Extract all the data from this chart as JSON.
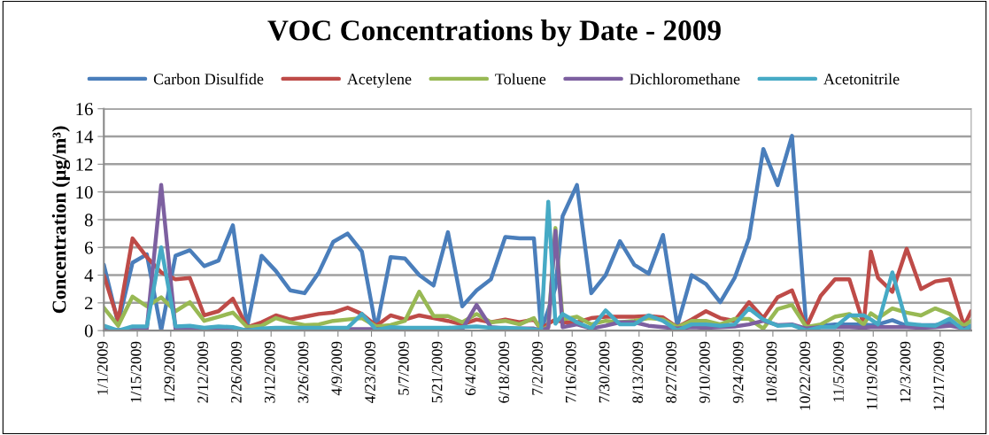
{
  "chart_data": {
    "type": "line",
    "title": "VOC Concentrations by Date - 2009",
    "ylabel": "Concentration (µg/m³)",
    "x": [
      "2009-01-01",
      "2009-01-07",
      "2009-01-13",
      "2009-01-19",
      "2009-01-25",
      "2009-01-31",
      "2009-02-06",
      "2009-02-12",
      "2009-02-18",
      "2009-02-24",
      "2009-03-02",
      "2009-03-08",
      "2009-03-14",
      "2009-03-20",
      "2009-03-26",
      "2009-04-01",
      "2009-04-07",
      "2009-04-13",
      "2009-04-19",
      "2009-04-25",
      "2009-05-01",
      "2009-05-07",
      "2009-05-13",
      "2009-05-19",
      "2009-05-25",
      "2009-05-31",
      "2009-06-06",
      "2009-06-12",
      "2009-06-18",
      "2009-06-24",
      "2009-06-30",
      "2009-07-03",
      "2009-07-06",
      "2009-07-09",
      "2009-07-12",
      "2009-07-18",
      "2009-07-24",
      "2009-07-30",
      "2009-08-05",
      "2009-08-11",
      "2009-08-17",
      "2009-08-23",
      "2009-08-29",
      "2009-09-04",
      "2009-09-10",
      "2009-09-16",
      "2009-09-22",
      "2009-09-28",
      "2009-10-04",
      "2009-10-10",
      "2009-10-16",
      "2009-10-22",
      "2009-10-28",
      "2009-11-03",
      "2009-11-09",
      "2009-11-15",
      "2009-11-18",
      "2009-11-21",
      "2009-11-27",
      "2009-12-03",
      "2009-12-09",
      "2009-12-15",
      "2009-12-21",
      "2009-12-27",
      "2009-12-30"
    ],
    "series": [
      {
        "name": "Carbon Disulfide",
        "color": "#4a7ebb",
        "values": [
          4.75,
          0.5,
          4.9,
          5.5,
          0,
          5.4,
          5.8,
          4.65,
          5.05,
          7.6,
          0.3,
          5.4,
          4.3,
          2.9,
          2.7,
          4.2,
          6.4,
          7.0,
          5.7,
          0.1,
          5.3,
          5.2,
          4.0,
          3.25,
          7.1,
          1.75,
          2.9,
          3.7,
          6.75,
          6.65,
          6.65,
          0,
          1.5,
          3.1,
          8.25,
          10.5,
          2.7,
          4.0,
          6.45,
          4.75,
          4.1,
          6.9,
          0.35,
          4.0,
          3.35,
          2.05,
          3.8,
          6.65,
          13.1,
          10.5,
          14.05,
          0.25,
          0.35,
          0.45,
          0.45,
          0.45,
          0.4,
          0.45,
          0.75,
          0.35,
          0.4,
          0.4,
          0.6,
          0.15,
          0.35
        ]
      },
      {
        "name": "Acetylene",
        "color": "#be4b48",
        "values": [
          4.0,
          0.7,
          6.65,
          5.3,
          4.2,
          3.7,
          3.8,
          1.1,
          1.4,
          2.3,
          0.25,
          0.6,
          1.1,
          0.8,
          1.0,
          1.2,
          1.3,
          1.65,
          1.2,
          0.35,
          1.1,
          0.8,
          1.1,
          0.9,
          0.7,
          0.45,
          0.8,
          0.6,
          0.8,
          0.6,
          0.8,
          0.1,
          0.5,
          0.8,
          0.6,
          0.6,
          0.9,
          1.0,
          1.0,
          1.0,
          1.05,
          0.95,
          0.25,
          0.8,
          1.4,
          0.9,
          0.7,
          2.05,
          0.9,
          2.4,
          2.9,
          0.25,
          2.5,
          3.7,
          3.7,
          0.45,
          5.7,
          3.8,
          2.8,
          5.9,
          3.0,
          3.55,
          3.7,
          0.35,
          1.4
        ]
      },
      {
        "name": "Toluene",
        "color": "#98b954",
        "values": [
          1.65,
          0.35,
          2.45,
          1.75,
          2.4,
          1.4,
          2.05,
          0.7,
          1.0,
          1.3,
          0.25,
          0.35,
          0.9,
          0.6,
          0.4,
          0.45,
          0.7,
          0.8,
          0.9,
          0.3,
          0.4,
          0.7,
          2.8,
          1.05,
          1.05,
          0.6,
          1.2,
          0.6,
          0.7,
          0.45,
          0.9,
          0,
          0.3,
          7.4,
          0.8,
          1.0,
          0.45,
          0.7,
          0.6,
          0.7,
          0.9,
          0.8,
          0.25,
          0.7,
          0.7,
          0.45,
          0.85,
          0.85,
          0.15,
          1.55,
          1.85,
          0.25,
          0.45,
          1.0,
          1.2,
          0.45,
          1.25,
          0.9,
          1.6,
          1.3,
          1.1,
          1.6,
          1.2,
          0.35,
          0.7
        ]
      },
      {
        "name": "Dichloromethane",
        "color": "#7d60a0",
        "values": [
          0.1,
          0.05,
          0.1,
          0.15,
          10.5,
          0.1,
          0.1,
          0.1,
          0.1,
          0.1,
          0.05,
          0.1,
          0.1,
          0.1,
          0.1,
          0.1,
          0.1,
          0.1,
          0.1,
          0.1,
          0.1,
          0.1,
          0.1,
          0.1,
          0.1,
          0.1,
          1.85,
          0.25,
          0.15,
          0.15,
          0.15,
          0,
          0.2,
          7.2,
          0.25,
          0.45,
          0.15,
          0.35,
          0.6,
          0.6,
          0.35,
          0.25,
          0.15,
          0.25,
          0.2,
          0.25,
          0.3,
          0.45,
          0.7,
          0.4,
          0.45,
          0.15,
          0.25,
          0.25,
          0.25,
          0.2,
          0.25,
          0.25,
          0.25,
          0.25,
          0.2,
          0.25,
          0.35,
          0.15,
          0.2
        ]
      },
      {
        "name": "Acetonitrile",
        "color": "#46aac5",
        "values": [
          0.35,
          0,
          0.3,
          0.3,
          6.0,
          0.3,
          0.35,
          0.2,
          0.3,
          0.25,
          0,
          0.15,
          0.2,
          0.2,
          0.2,
          0.2,
          0.2,
          0.2,
          1.2,
          0.05,
          0.25,
          0.2,
          0.2,
          0.2,
          0.2,
          0.25,
          0.3,
          0.2,
          0.2,
          0.15,
          0.1,
          0,
          9.3,
          0.5,
          1.2,
          0.6,
          0.15,
          1.45,
          0.45,
          0.45,
          1.1,
          0.7,
          0,
          0.45,
          0.45,
          0.35,
          0.45,
          1.6,
          0.8,
          0.35,
          0.4,
          0,
          0.25,
          0.25,
          1.1,
          1.1,
          0.8,
          0.45,
          4.2,
          0.5,
          0.4,
          0.35,
          0.85,
          0,
          0.35
        ]
      }
    ],
    "xlim": [
      "2009-01-01",
      "2009-12-30"
    ],
    "xticks": [
      {
        "value": "2009-01-01",
        "label": "1/1/2009"
      },
      {
        "value": "2009-01-15",
        "label": "1/15/2009"
      },
      {
        "value": "2009-01-29",
        "label": "1/29/2009"
      },
      {
        "value": "2009-02-12",
        "label": "2/12/2009"
      },
      {
        "value": "2009-02-26",
        "label": "2/26/2009"
      },
      {
        "value": "2009-03-12",
        "label": "3/12/2009"
      },
      {
        "value": "2009-03-26",
        "label": "3/26/2009"
      },
      {
        "value": "2009-04-09",
        "label": "4/9/2009"
      },
      {
        "value": "2009-04-23",
        "label": "4/23/2009"
      },
      {
        "value": "2009-05-07",
        "label": "5/7/2009"
      },
      {
        "value": "2009-05-21",
        "label": "5/21/2009"
      },
      {
        "value": "2009-06-04",
        "label": "6/4/2009"
      },
      {
        "value": "2009-06-18",
        "label": "6/18/2009"
      },
      {
        "value": "2009-07-02",
        "label": "7/2/2009"
      },
      {
        "value": "2009-07-16",
        "label": "7/16/2009"
      },
      {
        "value": "2009-07-30",
        "label": "7/30/2009"
      },
      {
        "value": "2009-08-13",
        "label": "8/13/2009"
      },
      {
        "value": "2009-08-27",
        "label": "8/27/2009"
      },
      {
        "value": "2009-09-10",
        "label": "9/10/2009"
      },
      {
        "value": "2009-09-24",
        "label": "9/24/2009"
      },
      {
        "value": "2009-10-08",
        "label": "10/8/2009"
      },
      {
        "value": "2009-10-22",
        "label": "10/22/2009"
      },
      {
        "value": "2009-11-05",
        "label": "11/5/2009"
      },
      {
        "value": "2009-11-19",
        "label": "11/19/2009"
      },
      {
        "value": "2009-12-03",
        "label": "12/3/2009"
      },
      {
        "value": "2009-12-17",
        "label": "12/17/2009"
      }
    ],
    "ylim": [
      0,
      16
    ],
    "yticks": [
      0,
      2,
      4,
      6,
      8,
      10,
      12,
      14,
      16
    ],
    "grid": "y",
    "legend": "top",
    "marker": "none",
    "line_style": "solid"
  }
}
